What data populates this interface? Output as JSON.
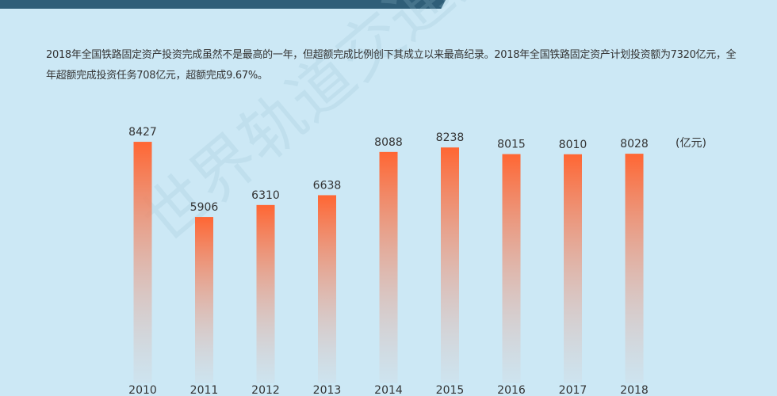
{
  "description": "2018年全国铁路固定资产投资完成虽然不是最高的一年，但超额完成比例创下其成立以来最高纪录。2018年全国铁路固定资产计划投资额为7320亿元，全年超额完成投资任务708亿元，超额完成9.67%。",
  "watermark": "世界轨道交通资讯网",
  "colors": {
    "background": "#cce8f5",
    "banner": "#2f5e78",
    "bar_top": "#ff6633",
    "bar_bottom": "#cfdde6"
  },
  "chart_data": {
    "type": "bar",
    "categories": [
      "2010",
      "2011",
      "2012",
      "2013",
      "2014",
      "2015",
      "2016",
      "2017",
      "2018"
    ],
    "values": [
      8427,
      5906,
      6310,
      6638,
      8088,
      8238,
      8015,
      8010,
      8028
    ],
    "unit": "(亿元)",
    "grid": false,
    "data_labels": true
  }
}
